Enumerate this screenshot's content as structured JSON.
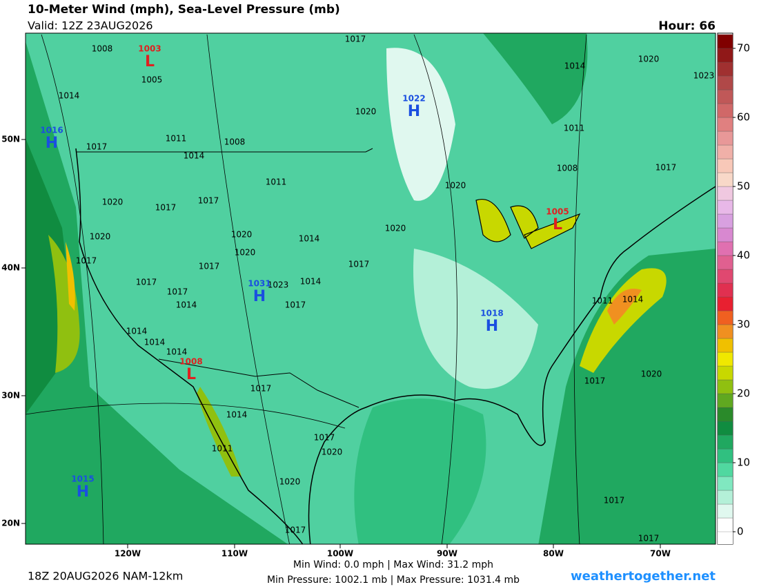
{
  "header": {
    "title": "10-Meter Wind (mph), Sea-Level Pressure (mb)",
    "valid": "Valid: 12Z 23AUG2026",
    "hour": "Hour: 66"
  },
  "map": {
    "lon_labels": [
      "120W",
      "110W",
      "100W",
      "90W",
      "80W",
      "70W"
    ],
    "lat_labels": [
      "50N",
      "40N",
      "30N",
      "20N"
    ],
    "pressure_centers": [
      {
        "symbol": "L",
        "label": "1003"
      },
      {
        "symbol": "H",
        "label": "1022"
      },
      {
        "symbol": "H",
        "label": "1016"
      },
      {
        "symbol": "L",
        "label": "1005"
      },
      {
        "symbol": "H",
        "label": "1031"
      },
      {
        "symbol": "H",
        "label": "1018"
      },
      {
        "symbol": "L",
        "label": "1008"
      },
      {
        "symbol": "H",
        "label": "1015"
      }
    ],
    "isobar_labels": [
      "1008",
      "1017",
      "1005",
      "1014",
      "1020",
      "1011",
      "1008",
      "1017",
      "1014",
      "1011",
      "1020",
      "1020",
      "1017",
      "1017",
      "1020",
      "1020",
      "1020",
      "1014",
      "1020",
      "1017",
      "1017",
      "1017",
      "1017",
      "1014",
      "1023",
      "1017",
      "1014",
      "1017",
      "1014",
      "1014",
      "1014",
      "1017",
      "1014",
      "1017",
      "1020",
      "1011",
      "1020",
      "1017",
      "1020",
      "1023",
      "1014",
      "1011",
      "1008",
      "1017",
      "1011",
      "1014",
      "1017",
      "1020",
      "1017",
      "1017"
    ]
  },
  "colorbar": {
    "ticks": [
      0,
      10,
      20,
      30,
      40,
      50,
      60,
      70
    ],
    "colors": [
      "#ffffff",
      "#e0f8ef",
      "#b4f0d8",
      "#80e8c0",
      "#50d8a0",
      "#30c080",
      "#20a860",
      "#108c40",
      "#2a8a2a",
      "#60a820",
      "#90c010",
      "#c8d800",
      "#f0e800",
      "#f0c000",
      "#f09020",
      "#f06020",
      "#e82030",
      "#e03050",
      "#e04870",
      "#e06090",
      "#e070b0",
      "#d888d0",
      "#d8a0e0",
      "#e8b8e8",
      "#f0c8e0",
      "#f8d8c8",
      "#f8c8b8",
      "#f0b0a8",
      "#e89898",
      "#e08080",
      "#d06868",
      "#c05858",
      "#b04848",
      "#a03030",
      "#901818",
      "#800000"
    ]
  },
  "footer": {
    "wind": "Min Wind:   0.0 mph | Max Wind:  31.2 mph",
    "pressure": "Min Pressure: 1002.1 mb | Max Pressure: 1031.4 mb",
    "run": "18Z 20AUG2026 NAM-12km",
    "site": "weathertogether.net"
  }
}
